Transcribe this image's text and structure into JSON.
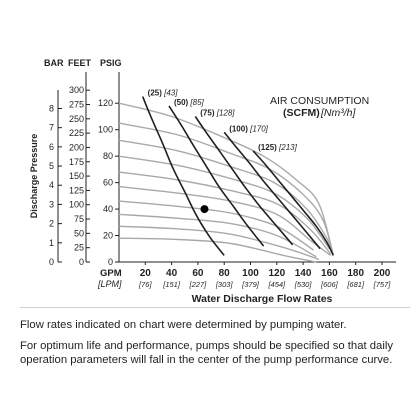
{
  "chart_data": {
    "type": "line",
    "title_line1": "AIR CONSUMPTION",
    "title_line2_bold": "(SCFM)",
    "title_line2_metric": "[Nm³/h]",
    "y_units": {
      "bar": "BAR",
      "feet": "FEET",
      "psig": "PSIG"
    },
    "ylabel": "Discharge Pressure",
    "xlabel": "Water Discharge Flow Rates",
    "x_units": {
      "gpm": "GPM",
      "lpm": "[LPM]"
    },
    "xlim": [
      0,
      200
    ],
    "ylim_psig": [
      0,
      130
    ],
    "x_ticks_gpm": [
      "20",
      "40",
      "60",
      "80",
      "100",
      "120",
      "140",
      "160",
      "180",
      "200"
    ],
    "x_ticks_lpm": [
      "[76]",
      "[151]",
      "[227]",
      "[303]",
      "[379]",
      "[454]",
      "[530]",
      "[606]",
      "[681]",
      "[757]"
    ],
    "y_ticks_psig": [
      "0",
      "20",
      "40",
      "60",
      "80",
      "100",
      "120"
    ],
    "y_ticks_feet": [
      "0",
      "25",
      "50",
      "75",
      "100",
      "125",
      "150",
      "175",
      "200",
      "225",
      "250",
      "275",
      "300"
    ],
    "y_ticks_bar": [
      "0",
      "1",
      "2",
      "3",
      "4",
      "5",
      "6",
      "7",
      "8"
    ],
    "air_curves": [
      {
        "label": "(25)",
        "label_metric": "[43]",
        "points": [
          [
            18,
            125
          ],
          [
            25,
            108
          ],
          [
            33,
            90
          ],
          [
            41,
            71
          ],
          [
            50,
            53
          ],
          [
            59,
            35
          ],
          [
            69,
            19
          ],
          [
            80,
            5
          ]
        ]
      },
      {
        "label": "(50)",
        "label_metric": "[85]",
        "points": [
          [
            38,
            118
          ],
          [
            47,
            104
          ],
          [
            56,
            89
          ],
          [
            66,
            73
          ],
          [
            76,
            57
          ],
          [
            87,
            42
          ],
          [
            98,
            27
          ],
          [
            110,
            12
          ]
        ]
      },
      {
        "label": "(75)",
        "label_metric": "[128]",
        "points": [
          [
            58,
            110
          ],
          [
            67,
            97
          ],
          [
            77,
            83
          ],
          [
            87,
            69
          ],
          [
            97,
            55
          ],
          [
            108,
            41
          ],
          [
            120,
            27
          ],
          [
            132,
            13
          ]
        ]
      },
      {
        "label": "(100)",
        "label_metric": "[170]",
        "points": [
          [
            80,
            98
          ],
          [
            89,
            87
          ],
          [
            99,
            75
          ],
          [
            110,
            61
          ],
          [
            121,
            48
          ],
          [
            132,
            35
          ],
          [
            143,
            22
          ],
          [
            153,
            10
          ]
        ]
      },
      {
        "label": "(125)",
        "label_metric": "[213]",
        "points": [
          [
            102,
            84
          ],
          [
            111,
            74
          ],
          [
            121,
            62
          ],
          [
            131,
            50
          ],
          [
            141,
            38
          ],
          [
            150,
            27
          ],
          [
            158,
            15
          ],
          [
            163,
            5
          ]
        ]
      }
    ],
    "pressure_curves": [
      {
        "points": [
          [
            0,
            120
          ],
          [
            40,
            110
          ],
          [
            80,
            94
          ],
          [
            110,
            80
          ],
          [
            135,
            62
          ],
          [
            152,
            44
          ],
          [
            163,
            5
          ]
        ]
      },
      {
        "points": [
          [
            0,
            105
          ],
          [
            45,
            96
          ],
          [
            85,
            82
          ],
          [
            115,
            70
          ],
          [
            140,
            51
          ],
          [
            155,
            32
          ],
          [
            163,
            5
          ]
        ]
      },
      {
        "points": [
          [
            0,
            92
          ],
          [
            45,
            84
          ],
          [
            85,
            72
          ],
          [
            118,
            60
          ],
          [
            142,
            41
          ],
          [
            158,
            18
          ],
          [
            163,
            5
          ]
        ]
      },
      {
        "points": [
          [
            0,
            80
          ],
          [
            45,
            73
          ],
          [
            85,
            63
          ],
          [
            118,
            52
          ],
          [
            143,
            33
          ],
          [
            160,
            10
          ]
        ]
      },
      {
        "points": [
          [
            0,
            68
          ],
          [
            45,
            62
          ],
          [
            85,
            54
          ],
          [
            120,
            44
          ],
          [
            145,
            25
          ],
          [
            161,
            6
          ]
        ]
      },
      {
        "points": [
          [
            0,
            57
          ],
          [
            45,
            52
          ],
          [
            85,
            46
          ],
          [
            120,
            36
          ],
          [
            146,
            16
          ],
          [
            161,
            5
          ]
        ]
      },
      {
        "points": [
          [
            0,
            46
          ],
          [
            45,
            42
          ],
          [
            85,
            37
          ],
          [
            120,
            27
          ],
          [
            148,
            9
          ]
        ]
      },
      {
        "points": [
          [
            0,
            36
          ],
          [
            45,
            33
          ],
          [
            85,
            29
          ],
          [
            120,
            20
          ],
          [
            150,
            4
          ]
        ]
      },
      {
        "points": [
          [
            0,
            27
          ],
          [
            45,
            25
          ],
          [
            85,
            21
          ],
          [
            125,
            11
          ],
          [
            152,
            2
          ]
        ]
      },
      {
        "points": [
          [
            0,
            18
          ],
          [
            45,
            17
          ],
          [
            85,
            14
          ],
          [
            125,
            5
          ],
          [
            150,
            0
          ]
        ]
      }
    ],
    "example_point": {
      "x": 65,
      "y": 40
    },
    "grid": false
  },
  "notes": {
    "line1": "Flow rates indicated on chart were determined by pumping water.",
    "line2": "For optimum life and performance, pumps should be specified so that daily operation parameters will fall in the center of the pump performance curve."
  }
}
